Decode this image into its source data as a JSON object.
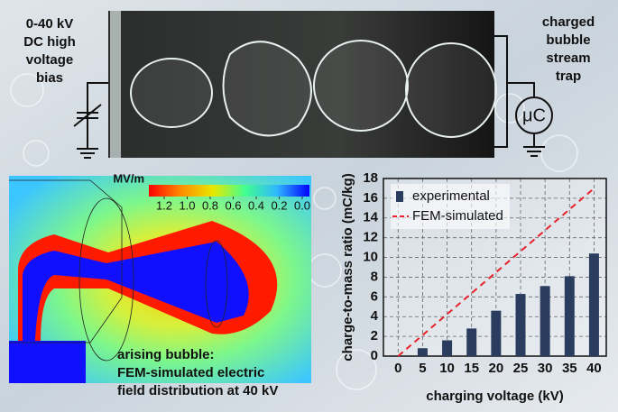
{
  "source_label": {
    "lines": [
      "0-40 kV",
      "DC high",
      "voltage",
      "bias"
    ]
  },
  "trap_label": {
    "lines": [
      "charged",
      "bubble",
      "stream",
      "trap"
    ]
  },
  "meter_label": "μC",
  "fem_caption": {
    "lines": [
      "arising bubble:",
      "FEM-simulated electric",
      "field distribution at 40 kV"
    ]
  },
  "colorbar": {
    "label": "MV/m",
    "range": [
      1.2,
      0.0
    ],
    "ticks": [
      {
        "value": 1.2,
        "label": "1.2"
      },
      {
        "value": 1.0,
        "label": "1.0"
      },
      {
        "value": 0.8,
        "label": "0.8"
      },
      {
        "value": 0.6,
        "label": "0.6"
      },
      {
        "value": 0.4,
        "label": "0.4"
      },
      {
        "value": 0.2,
        "label": "0.2"
      },
      {
        "value": 0.0,
        "label": "0.0"
      }
    ]
  },
  "chart_data": {
    "type": "bar",
    "xlabel": "charging voltage (kV)",
    "ylabel": "charge-to-mass ratio (mC/kg)",
    "xlim": [
      -3,
      42.5
    ],
    "xticks": [
      0,
      5,
      10,
      15,
      20,
      25,
      30,
      35,
      40
    ],
    "ylim": [
      0,
      18
    ],
    "yticks": [
      0,
      2,
      4,
      6,
      8,
      10,
      12,
      14,
      16,
      18
    ],
    "grid": true,
    "legend": "upper left",
    "series": [
      {
        "name": "experimental",
        "kind": "bar",
        "color": "#2b3d5e",
        "x": [
          5,
          10,
          15,
          20,
          25,
          30,
          35,
          40
        ],
        "values": [
          0.8,
          1.6,
          2.8,
          4.6,
          6.3,
          7.1,
          8.1,
          10.4
        ]
      },
      {
        "name": "FEM-simulated",
        "kind": "line",
        "color": "#e8222a",
        "x": [
          0,
          40
        ],
        "values": [
          0,
          17
        ]
      }
    ]
  }
}
